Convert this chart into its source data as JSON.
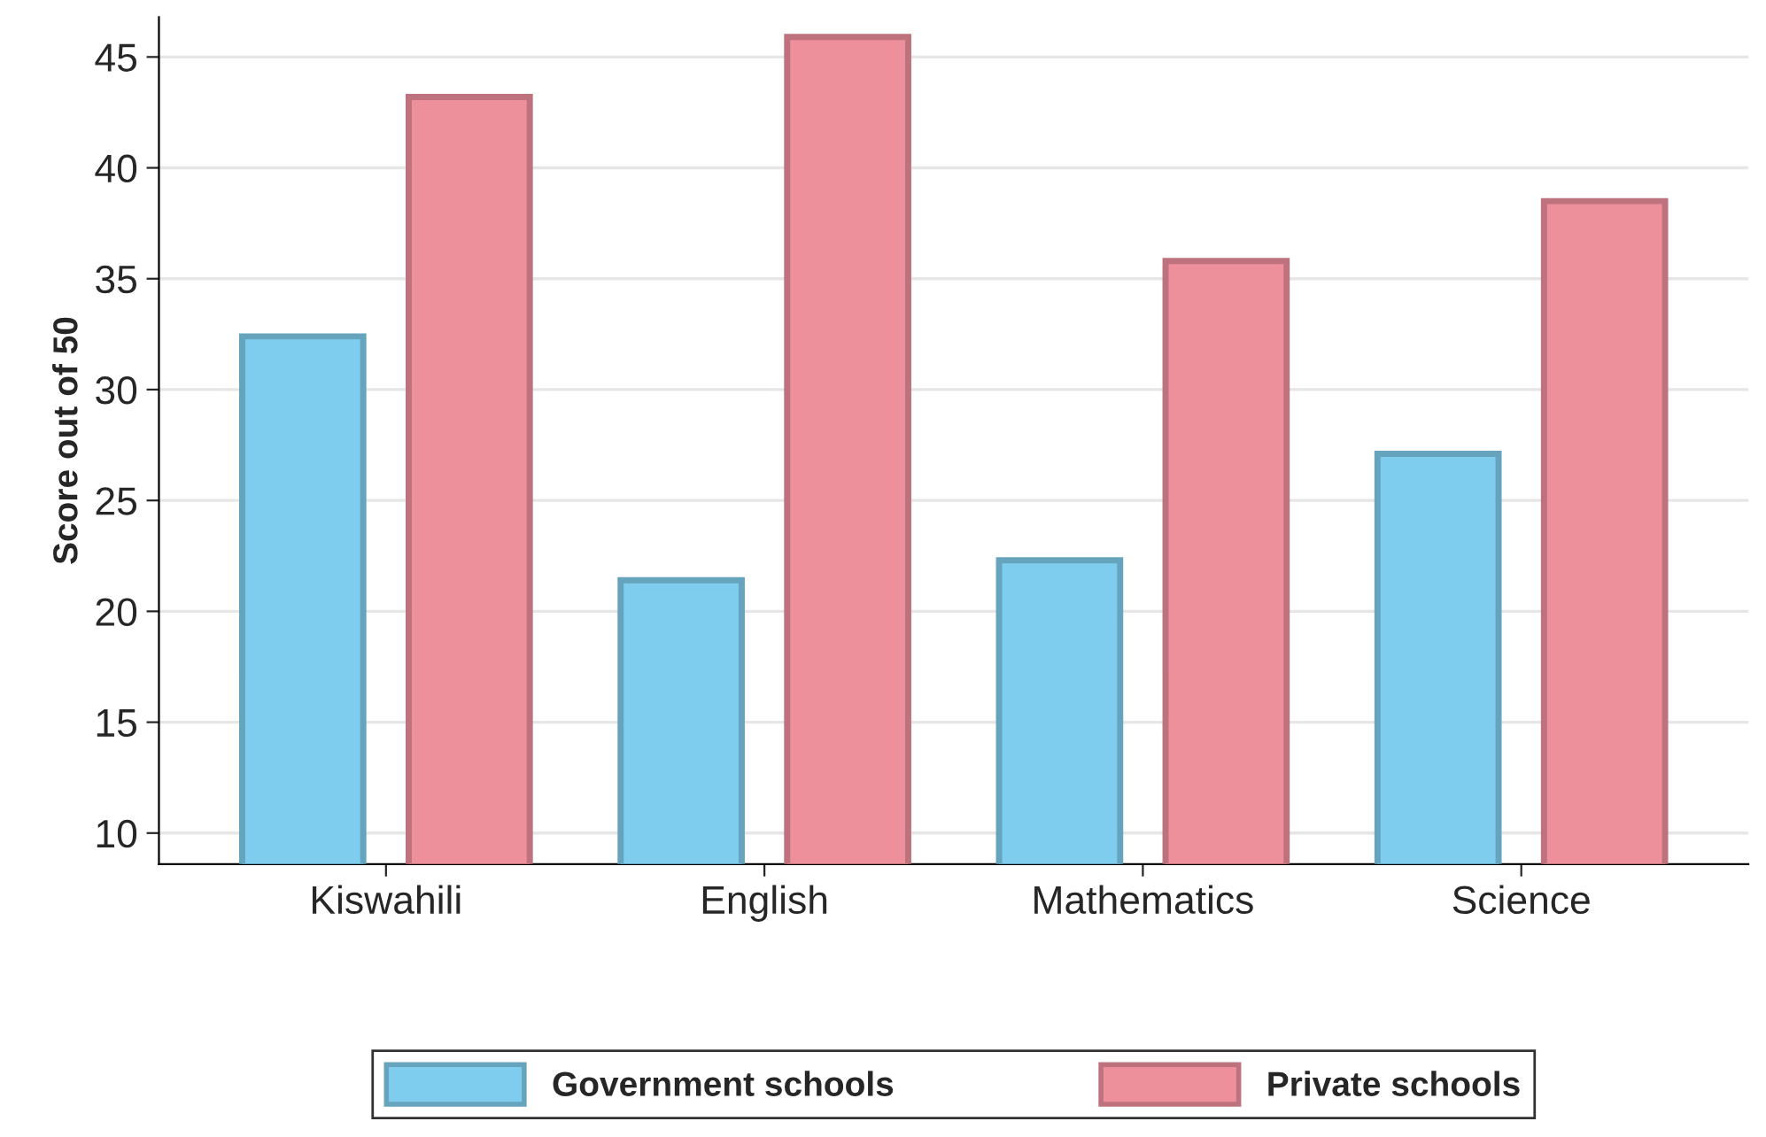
{
  "chart_data": {
    "type": "bar",
    "ylabel": "Score out of 50",
    "categories": [
      "Kiswahili",
      "English",
      "Mathematics",
      "Science"
    ],
    "series": [
      {
        "name": "Government schools",
        "color": "#7fcdee",
        "values": [
          32.4,
          21.4,
          22.3,
          27.1
        ]
      },
      {
        "name": "Private schools",
        "color": "#ee8f9c",
        "values": [
          43.2,
          45.9,
          35.8,
          38.5
        ]
      }
    ],
    "ylim": [
      8.6,
      46.8
    ],
    "yticks": [
      10,
      15,
      20,
      25,
      30,
      35,
      40,
      45
    ],
    "grid": "y",
    "legend": "bottom"
  }
}
